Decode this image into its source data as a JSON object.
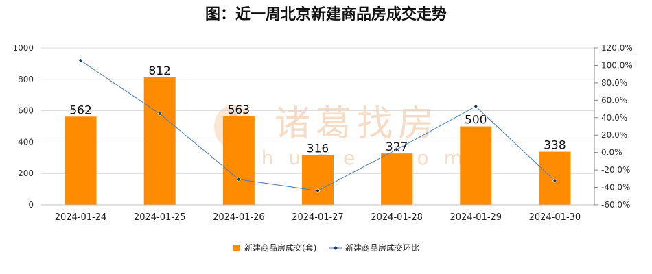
{
  "chart_data": {
    "type": "bar+line",
    "title": "图：近一周北京新建商品房成交走势",
    "categories": [
      "2024-01-24",
      "2024-01-25",
      "2024-01-26",
      "2024-01-27",
      "2024-01-28",
      "2024-01-29",
      "2024-01-30"
    ],
    "series": [
      {
        "name": "新建商品房成交(套)",
        "type": "bar",
        "axis": "left",
        "color": "#ff8c00",
        "values": [
          562,
          812,
          563,
          316,
          327,
          500,
          338
        ]
      },
      {
        "name": "新建商品房成交环比",
        "type": "line",
        "axis": "right",
        "color": "#4a7ebb",
        "marker_color": "#1f3b5c",
        "values": [
          105.5,
          44.5,
          -30.7,
          -43.9,
          3.5,
          52.9,
          -32.4
        ]
      }
    ],
    "y_left": {
      "min": 0,
      "max": 1000,
      "ticks": [
        "0",
        "200",
        "400",
        "600",
        "800",
        "1000"
      ]
    },
    "y_right": {
      "min": -60,
      "max": 120,
      "ticks": [
        "-60.0%",
        "-40.0%",
        "-20.0%",
        "0.0%",
        "20.0%",
        "40.0%",
        "60.0%",
        "80.0%",
        "100.0%",
        "120.0%"
      ]
    },
    "grid": true,
    "legend": "bottom-center",
    "watermark": {
      "cn": "诸葛找房",
      "en": "zhuge.com",
      "color": "#f6d9bf"
    }
  }
}
